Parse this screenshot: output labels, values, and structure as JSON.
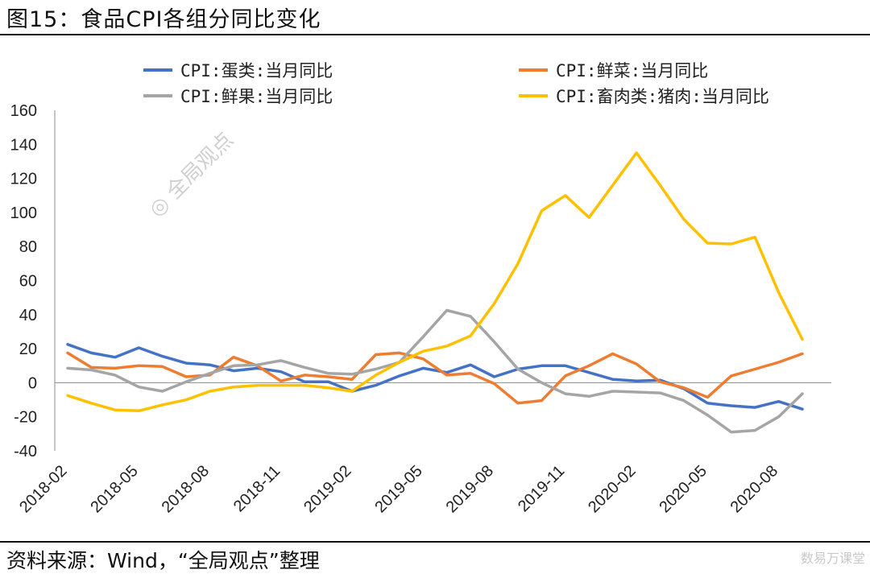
{
  "header": {
    "title": "图15：食品CPI各组分同比变化"
  },
  "footer": {
    "source": "资料来源：Wind，“全局观点”整理",
    "corner_mark": "数易万课堂"
  },
  "watermark": {
    "text": "全局观点"
  },
  "colors": {
    "egg": "#4472C4",
    "veg": "#ED7D31",
    "fruit": "#A5A5A5",
    "pork": "#FFC000"
  },
  "chart_data": {
    "type": "line",
    "title": "",
    "xlabel": "",
    "ylabel": "",
    "ylim": [
      -40,
      160
    ],
    "yticks": [
      -40,
      -20,
      0,
      20,
      40,
      60,
      80,
      100,
      120,
      140,
      160
    ],
    "grid": false,
    "legend_position": "top",
    "x": [
      "2018-02",
      "2018-03",
      "2018-04",
      "2018-05",
      "2018-06",
      "2018-07",
      "2018-08",
      "2018-09",
      "2018-10",
      "2018-11",
      "2018-12",
      "2019-01",
      "2019-02",
      "2019-03",
      "2019-04",
      "2019-05",
      "2019-06",
      "2019-07",
      "2019-08",
      "2019-09",
      "2019-10",
      "2019-11",
      "2019-12",
      "2020-01",
      "2020-02",
      "2020-03",
      "2020-04",
      "2020-05",
      "2020-06",
      "2020-07",
      "2020-08",
      "2020-09"
    ],
    "xtick_labels": [
      "2018-02",
      "2018-05",
      "2018-08",
      "2018-11",
      "2019-02",
      "2019-05",
      "2019-08",
      "2019-11",
      "2020-02",
      "2020-05",
      "2020-08"
    ],
    "series": [
      {
        "name": "CPI:蛋类:当月同比",
        "color": "#4472C4",
        "values": [
          22.5,
          17.5,
          15,
          20.5,
          15.5,
          11.5,
          10.5,
          7,
          8.5,
          6.5,
          0.5,
          0.5,
          -5,
          -1.5,
          4,
          8.5,
          6,
          10.5,
          3.5,
          8,
          10,
          10,
          6,
          2,
          1,
          1.5,
          -3.5,
          -12,
          -13.5,
          -14.5,
          -11,
          -15.5
        ]
      },
      {
        "name": "CPI:鲜菜:当月同比",
        "color": "#ED7D31",
        "values": [
          17.5,
          9,
          8.5,
          10,
          9.5,
          3.5,
          4.5,
          15,
          10,
          1,
          4.5,
          3.5,
          2,
          16.5,
          17.5,
          14,
          4.5,
          5.5,
          -0.5,
          -12,
          -10.5,
          4,
          10,
          17,
          11,
          0.5,
          -3,
          -8.5,
          4,
          8,
          12,
          17
        ]
      },
      {
        "name": "CPI:鲜果:当月同比",
        "color": "#A5A5A5",
        "values": [
          8.5,
          7.5,
          4.5,
          -2.5,
          -5,
          0.5,
          5.5,
          10,
          10.5,
          13,
          9,
          5.5,
          5,
          8,
          12,
          27,
          42.5,
          39,
          24,
          8,
          0,
          -6.5,
          -8,
          -5,
          -5.5,
          -6,
          -10.5,
          -19,
          -29,
          -28,
          -20,
          -6.5
        ]
      },
      {
        "name": "CPI:畜肉类:猪肉:当月同比",
        "color": "#FFC000",
        "values": [
          -7.5,
          -12,
          -16,
          -16.5,
          -13,
          -10,
          -5,
          -2.5,
          -1.5,
          -1.5,
          -1.5,
          -3,
          -5,
          4.5,
          12,
          18.5,
          21.5,
          27.5,
          46.5,
          70,
          101,
          110,
          97,
          116,
          135,
          116,
          96,
          82,
          81.5,
          85.5,
          53,
          25.5
        ]
      }
    ]
  }
}
